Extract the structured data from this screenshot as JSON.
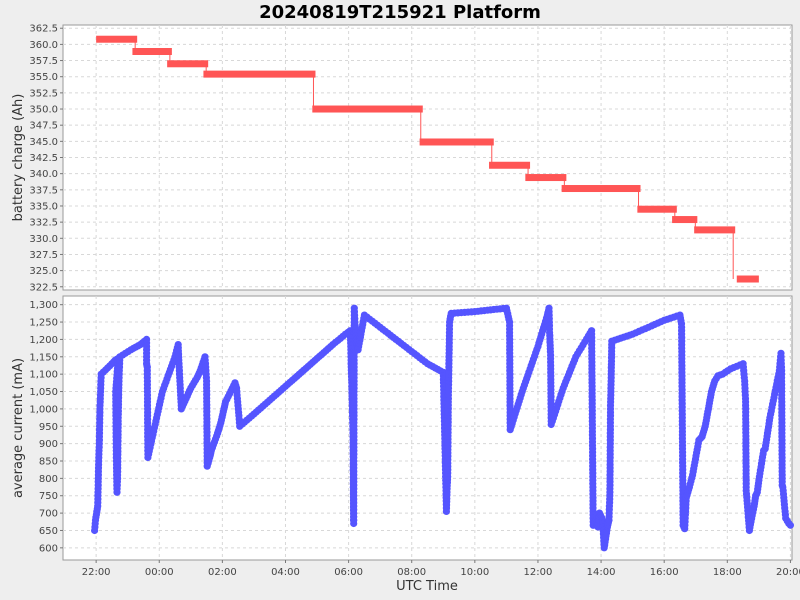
{
  "chart_data": {
    "title": "20240819T215921 Platform",
    "xlabel": "UTC Time",
    "x_ticks": [
      "22:00",
      "00:00",
      "02:00",
      "04:00",
      "06:00",
      "08:00",
      "10:00",
      "12:00",
      "14:00",
      "16:00",
      "18:00",
      "20:00"
    ],
    "x_range_hours": [
      -1.05,
      22.05
    ],
    "grid": true,
    "panels": [
      {
        "type": "line",
        "ylabel": "battery charge (Ah)",
        "ylim": [
          322.0,
          363.0
        ],
        "y_ticks": [
          "322.5",
          "325.0",
          "327.5",
          "330.0",
          "332.5",
          "335.0",
          "337.5",
          "340.0",
          "342.5",
          "345.0",
          "347.5",
          "350.0",
          "352.5",
          "355.0",
          "357.5",
          "360.0",
          "362.5"
        ],
        "color": "#ff5555",
        "segments": [
          {
            "start": 0.0,
            "end": 1.3,
            "value": 360.8
          },
          {
            "start": 1.15,
            "end": 2.4,
            "value": 358.9
          },
          {
            "start": 2.25,
            "end": 3.55,
            "value": 357.0
          },
          {
            "start": 3.4,
            "end": 6.95,
            "value": 355.4
          },
          {
            "start": 6.85,
            "end": 10.35,
            "value": 350.0
          },
          {
            "start": 10.25,
            "end": 12.6,
            "value": 344.9
          },
          {
            "start": 12.45,
            "end": 13.75,
            "value": 341.3
          },
          {
            "start": 13.6,
            "end": 14.9,
            "value": 339.4
          },
          {
            "start": 14.75,
            "end": 17.25,
            "value": 337.7
          },
          {
            "start": 17.15,
            "end": 18.4,
            "value": 334.5
          },
          {
            "start": 18.25,
            "end": 19.05,
            "value": 332.9
          },
          {
            "start": 18.95,
            "end": 20.25,
            "value": 331.3
          },
          {
            "start": 20.3,
            "end": 21.0,
            "value": 323.7
          }
        ]
      },
      {
        "type": "line",
        "ylabel": "average current (mA)",
        "ylim": [
          565,
          1325
        ],
        "y_ticks": [
          "600",
          "650",
          "700",
          "750",
          "800",
          "850",
          "900",
          "950",
          "1,000",
          "1,050",
          "1,100",
          "1,150",
          "1,200",
          "1,250",
          "1,300"
        ],
        "color": "#5555ff",
        "points": [
          [
            -0.05,
            650
          ],
          [
            -0.02,
            680
          ],
          [
            0.05,
            720
          ],
          [
            0.08,
            850
          ],
          [
            0.1,
            900
          ],
          [
            0.12,
            1000
          ],
          [
            0.14,
            1050
          ],
          [
            0.16,
            1100
          ],
          [
            0.5,
            1130
          ],
          [
            0.6,
            1140
          ],
          [
            0.7,
            1145
          ],
          [
            0.62,
            1050
          ],
          [
            0.64,
            860
          ],
          [
            0.66,
            760
          ],
          [
            0.68,
            800
          ],
          [
            0.7,
            975
          ],
          [
            0.72,
            1070
          ],
          [
            0.75,
            1150
          ],
          [
            1.1,
            1170
          ],
          [
            1.4,
            1185
          ],
          [
            1.6,
            1200
          ],
          [
            1.6,
            1130
          ],
          [
            1.62,
            1120
          ],
          [
            1.64,
            860
          ],
          [
            2.1,
            1050
          ],
          [
            2.5,
            1150
          ],
          [
            2.6,
            1185
          ],
          [
            2.62,
            1140
          ],
          [
            2.7,
            1000
          ],
          [
            2.85,
            1030
          ],
          [
            3.0,
            1060
          ],
          [
            3.2,
            1090
          ],
          [
            3.3,
            1110
          ],
          [
            3.45,
            1150
          ],
          [
            3.5,
            1080
          ],
          [
            3.52,
            835
          ],
          [
            3.6,
            860
          ],
          [
            3.65,
            880
          ],
          [
            3.85,
            930
          ],
          [
            3.95,
            960
          ],
          [
            4.05,
            1000
          ],
          [
            4.1,
            1020
          ],
          [
            4.4,
            1075
          ],
          [
            4.45,
            1060
          ],
          [
            4.55,
            950
          ],
          [
            5.0,
            985
          ],
          [
            5.5,
            1025
          ],
          [
            6.0,
            1065
          ],
          [
            6.5,
            1105
          ],
          [
            7.0,
            1145
          ],
          [
            7.5,
            1185
          ],
          [
            7.9,
            1215
          ],
          [
            8.05,
            1225
          ],
          [
            8.07,
            1180
          ],
          [
            8.08,
            1130
          ],
          [
            8.1,
            1075
          ],
          [
            8.12,
            990
          ],
          [
            8.14,
            930
          ],
          [
            8.15,
            775
          ],
          [
            8.16,
            670
          ],
          [
            8.18,
            1290
          ],
          [
            8.2,
            1250
          ],
          [
            8.25,
            1200
          ],
          [
            8.3,
            1170
          ],
          [
            8.5,
            1270
          ],
          [
            9.0,
            1235
          ],
          [
            9.5,
            1200
          ],
          [
            10.0,
            1165
          ],
          [
            10.5,
            1130
          ],
          [
            11.0,
            1105
          ],
          [
            11.1,
            705
          ],
          [
            11.12,
            770
          ],
          [
            11.14,
            805
          ],
          [
            11.16,
            1020
          ],
          [
            11.2,
            1250
          ],
          [
            11.25,
            1275
          ],
          [
            12.0,
            1280
          ],
          [
            12.5,
            1285
          ],
          [
            13.0,
            1290
          ],
          [
            13.1,
            1250
          ],
          [
            13.12,
            940
          ],
          [
            13.5,
            1050
          ],
          [
            14.0,
            1180
          ],
          [
            14.3,
            1270
          ],
          [
            14.35,
            1290
          ],
          [
            14.37,
            1220
          ],
          [
            14.4,
            1155
          ],
          [
            14.42,
            955
          ],
          [
            14.8,
            1060
          ],
          [
            15.2,
            1150
          ],
          [
            15.6,
            1210
          ],
          [
            15.7,
            1225
          ],
          [
            15.75,
            665
          ],
          [
            15.85,
            680
          ],
          [
            15.9,
            660
          ],
          [
            15.95,
            700
          ],
          [
            16.05,
            680
          ],
          [
            16.1,
            600
          ],
          [
            16.2,
            660
          ],
          [
            16.25,
            680
          ],
          [
            16.28,
            760
          ],
          [
            16.3,
            1010
          ],
          [
            16.32,
            1090
          ],
          [
            16.34,
            1195
          ],
          [
            17.0,
            1215
          ],
          [
            17.5,
            1235
          ],
          [
            18.0,
            1255
          ],
          [
            18.5,
            1270
          ],
          [
            18.55,
            1245
          ],
          [
            18.6,
            665
          ],
          [
            18.65,
            655
          ],
          [
            18.7,
            745
          ],
          [
            18.8,
            775
          ],
          [
            18.9,
            810
          ],
          [
            19.1,
            910
          ],
          [
            19.2,
            920
          ],
          [
            19.3,
            950
          ],
          [
            19.4,
            1000
          ],
          [
            19.5,
            1050
          ],
          [
            19.6,
            1080
          ],
          [
            19.7,
            1095
          ],
          [
            19.85,
            1100
          ],
          [
            20.1,
            1115
          ],
          [
            20.5,
            1130
          ],
          [
            20.55,
            1080
          ],
          [
            20.58,
            1020
          ],
          [
            20.6,
            765
          ],
          [
            20.7,
            650
          ],
          [
            20.75,
            675
          ],
          [
            20.85,
            720
          ],
          [
            20.9,
            750
          ],
          [
            20.95,
            760
          ],
          [
            21.0,
            795
          ],
          [
            21.15,
            880
          ],
          [
            21.2,
            885
          ],
          [
            21.35,
            975
          ],
          [
            21.65,
            1110
          ],
          [
            21.7,
            1160
          ],
          [
            21.72,
            1110
          ],
          [
            21.74,
            780
          ],
          [
            21.76,
            775
          ],
          [
            21.85,
            685
          ],
          [
            21.95,
            670
          ],
          [
            22.0,
            665
          ]
        ]
      }
    ]
  }
}
